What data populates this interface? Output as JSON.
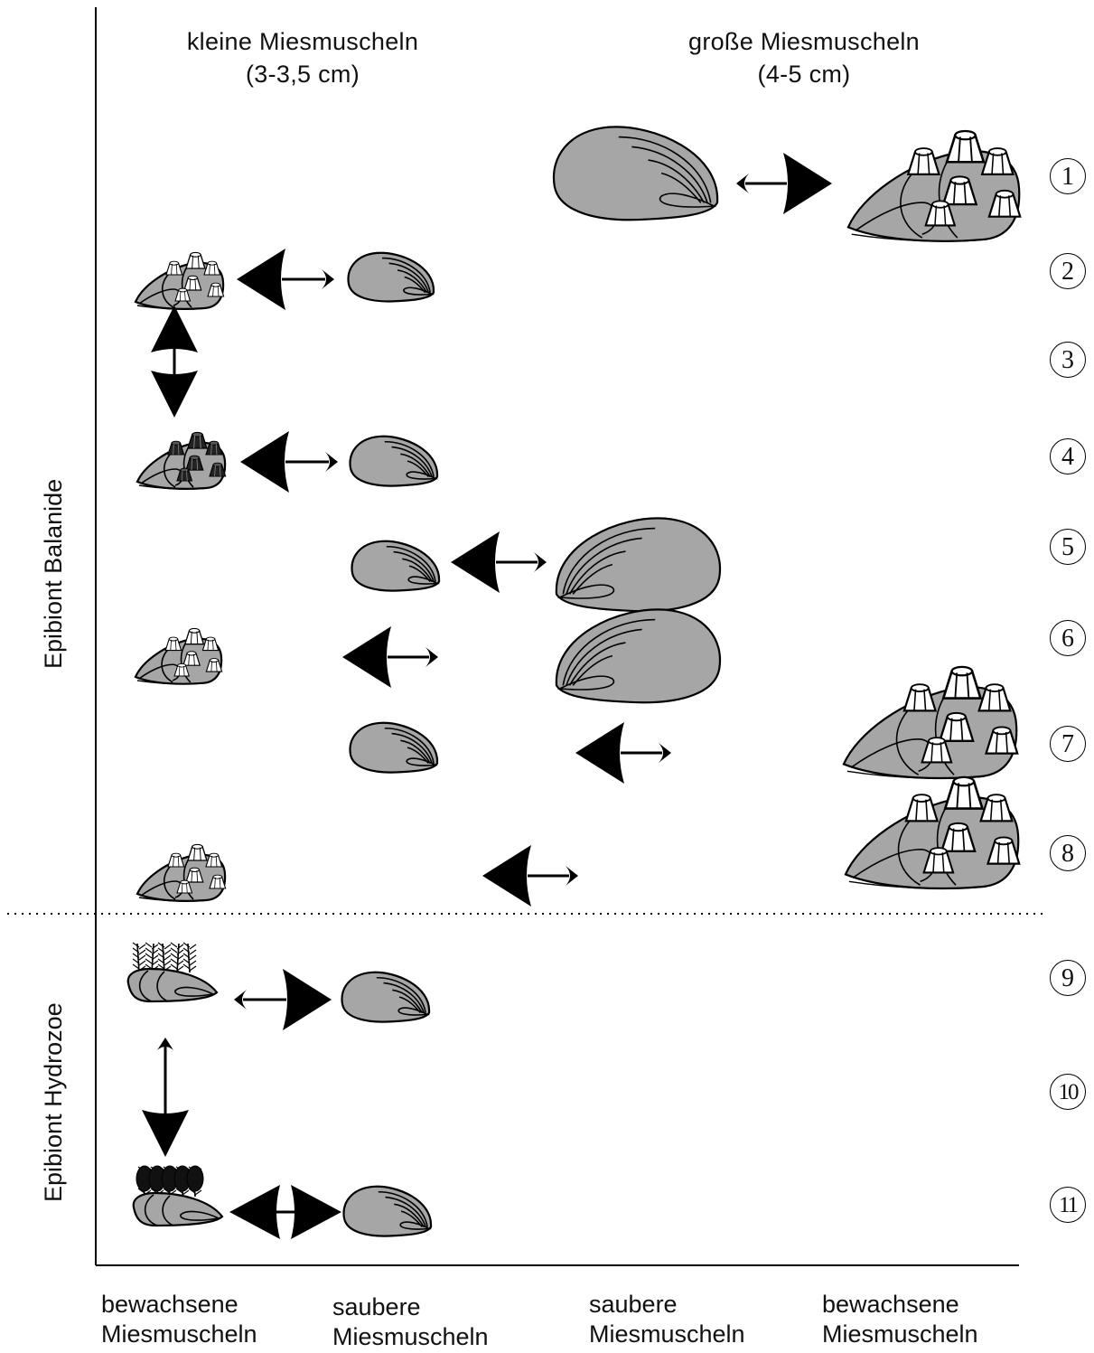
{
  "headers": {
    "small": [
      "kleine Miesmuscheln",
      "(3-3,5 cm)"
    ],
    "large": [
      "große Miesmuscheln",
      "(4-5 cm)"
    ]
  },
  "side_labels": {
    "balanide": "Epibiont Balanide",
    "hydrozoe": "Epibiont Hydrozoe"
  },
  "footers": {
    "col1": [
      "bewachsene",
      "Miesmuscheln"
    ],
    "col2": [
      "saubere",
      "Miesmuscheln"
    ],
    "col3": [
      "saubere",
      "Miesmuscheln"
    ],
    "col4": [
      "bewachsene",
      "Miesmuscheln"
    ]
  },
  "row_numbers": [
    "1",
    "2",
    "3",
    "4",
    "5",
    "6",
    "7",
    "8",
    "9",
    "10",
    "11"
  ],
  "colors": {
    "shell_fill": "#a6a6a6",
    "outline": "#000000",
    "background": "#ffffff"
  }
}
